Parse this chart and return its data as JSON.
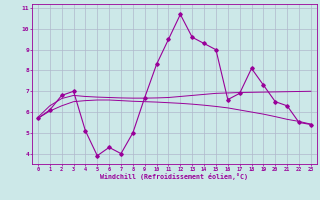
{
  "xlabel": "Windchill (Refroidissement éolien,°C)",
  "background_color": "#cce8e8",
  "line_color": "#990099",
  "grid_color": "#b0b8cc",
  "x_hours": [
    0,
    1,
    2,
    3,
    4,
    5,
    6,
    7,
    8,
    9,
    10,
    11,
    12,
    13,
    14,
    15,
    16,
    17,
    18,
    19,
    20,
    21,
    22,
    23
  ],
  "line1": [
    5.7,
    6.1,
    6.8,
    7.0,
    5.1,
    3.9,
    4.3,
    4.0,
    5.0,
    6.7,
    8.3,
    9.5,
    10.7,
    9.6,
    9.3,
    9.0,
    6.6,
    6.9,
    8.1,
    7.3,
    6.5,
    6.3,
    5.5,
    5.4
  ],
  "smooth1": [
    5.75,
    6.3,
    6.65,
    6.8,
    6.75,
    6.72,
    6.7,
    6.68,
    6.67,
    6.67,
    6.68,
    6.7,
    6.75,
    6.8,
    6.85,
    6.9,
    6.92,
    6.94,
    6.95,
    6.96,
    6.97,
    6.98,
    6.99,
    7.0
  ],
  "smooth2": [
    5.7,
    6.05,
    6.3,
    6.5,
    6.55,
    6.58,
    6.58,
    6.55,
    6.52,
    6.5,
    6.48,
    6.45,
    6.42,
    6.38,
    6.33,
    6.27,
    6.2,
    6.1,
    6.0,
    5.9,
    5.78,
    5.65,
    5.55,
    5.42
  ],
  "ylim": [
    3.5,
    11.2
  ],
  "xlim": [
    -0.5,
    23.5
  ],
  "yticks": [
    4,
    5,
    6,
    7,
    8,
    9,
    10,
    11
  ],
  "xticks": [
    0,
    1,
    2,
    3,
    4,
    5,
    6,
    7,
    8,
    9,
    10,
    11,
    12,
    13,
    14,
    15,
    16,
    17,
    18,
    19,
    20,
    21,
    22,
    23
  ]
}
